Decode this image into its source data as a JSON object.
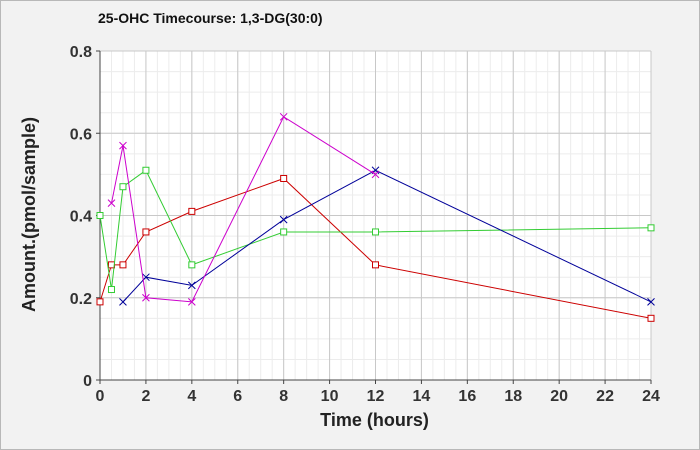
{
  "chart_data": {
    "type": "line",
    "title": "25-OHC Timecourse: 1,3-DG(30:0)",
    "xlabel": "Time (hours)",
    "ylabel": "Amount.(pmol/sample)",
    "xlim": [
      0,
      24
    ],
    "ylim": [
      0,
      0.8
    ],
    "xticks": [
      0,
      2,
      4,
      6,
      8,
      10,
      12,
      14,
      16,
      18,
      20,
      22,
      24
    ],
    "yticks": [
      0,
      0.2,
      0.4,
      0.6,
      0.8
    ],
    "ytick_labels": [
      "0",
      "0.2",
      "0.4",
      "0.6",
      "0.8"
    ],
    "grid": true,
    "legend": "none",
    "series": [
      {
        "color": "#cc0000",
        "marker": "square",
        "x": [
          0,
          0.5,
          1,
          2,
          4,
          8,
          12,
          24
        ],
        "y": [
          0.19,
          0.28,
          0.28,
          0.36,
          0.41,
          0.49,
          0.28,
          0.15
        ]
      },
      {
        "color": "#33cc33",
        "marker": "square",
        "x": [
          0,
          0.5,
          1,
          2,
          4,
          8,
          12,
          24
        ],
        "y": [
          0.4,
          0.22,
          0.47,
          0.51,
          0.28,
          0.36,
          0.36,
          0.37
        ]
      },
      {
        "color": "#000099",
        "marker": "x",
        "x": [
          1,
          2,
          4,
          8,
          12,
          24
        ],
        "y": [
          0.19,
          0.25,
          0.23,
          0.39,
          0.51,
          0.19
        ]
      },
      {
        "color": "#cc00cc",
        "marker": "x",
        "x": [
          0.5,
          1,
          2,
          4,
          8,
          12
        ],
        "y": [
          0.43,
          0.57,
          0.2,
          0.19,
          0.64,
          0.5
        ]
      }
    ]
  }
}
